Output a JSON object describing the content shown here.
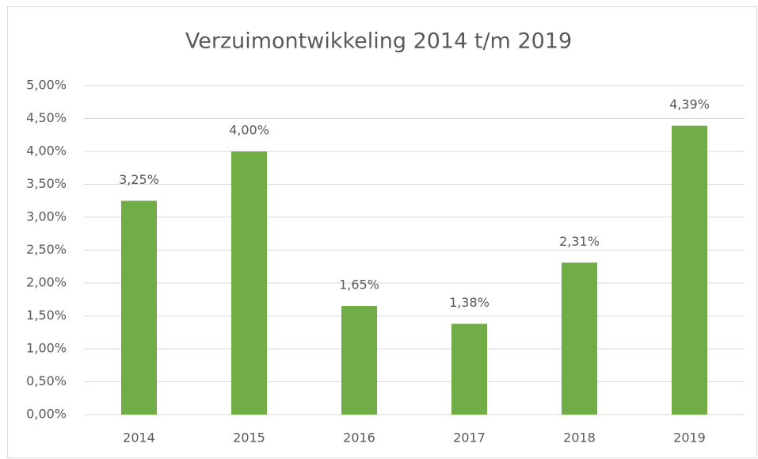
{
  "chart_data": {
    "type": "bar",
    "title": "Verzuimontwikkeling 2014 t/m 2019",
    "categories": [
      "2014",
      "2015",
      "2016",
      "2017",
      "2018",
      "2019"
    ],
    "values": [
      3.25,
      4.0,
      1.65,
      1.38,
      2.31,
      4.39
    ],
    "value_labels": [
      "3,25%",
      "4,00%",
      "1,65%",
      "1,38%",
      "2,31%",
      "4,39%"
    ],
    "color": "#70ad47",
    "ylim": [
      0,
      5
    ],
    "yticks": [
      {
        "value": 0,
        "label": "0,00%"
      },
      {
        "value": 0.5,
        "label": "0,50%"
      },
      {
        "value": 1,
        "label": "1,00%"
      },
      {
        "value": 1.5,
        "label": "1,50%"
      },
      {
        "value": 2,
        "label": "2,00%"
      },
      {
        "value": 2.5,
        "label": "2,50%"
      },
      {
        "value": 3,
        "label": "3,00%"
      },
      {
        "value": 3.5,
        "label": "3,50%"
      },
      {
        "value": 4,
        "label": "4,00%"
      },
      {
        "value": 4.5,
        "label": "4,50%"
      },
      {
        "value": 5,
        "label": "5,00%"
      }
    ],
    "grid": true
  }
}
